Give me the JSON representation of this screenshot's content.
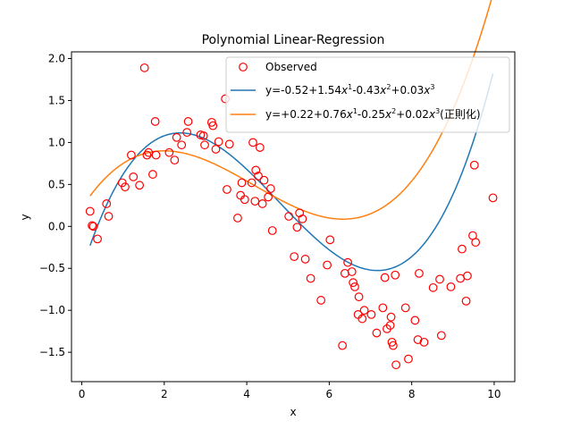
{
  "chart_data": {
    "type": "scatter",
    "title": "Polynomial Linear-Regression",
    "xlabel": "x",
    "ylabel": "y",
    "xlim": [
      -0.25,
      10.5
    ],
    "ylim": [
      -1.85,
      2.08
    ],
    "xticks": [
      0,
      2,
      4,
      6,
      8,
      10
    ],
    "yticks": [
      -1.5,
      -1.0,
      -0.5,
      0.0,
      0.5,
      1.0,
      1.5,
      2.0
    ],
    "xtick_labels": [
      "0",
      "2",
      "4",
      "6",
      "8",
      "10"
    ],
    "ytick_labels": [
      "−1.5",
      "−1.0",
      "−0.5",
      "0.0",
      "0.5",
      "1.0",
      "1.5",
      "2.0"
    ],
    "grid": false,
    "legend_position": "upper-right",
    "legend": {
      "observed": "Observed",
      "fit": {
        "intercept": "y=-0.52+1.54",
        "t1": "-0.43",
        "t2": "+0.03",
        "tail": ""
      },
      "ridge": {
        "intercept": "y=+0.22+0.76",
        "t1": "-0.25",
        "t2": "+0.02",
        "tail": "(正則化)"
      }
    },
    "scatter_series": {
      "name": "Observed",
      "color": "#ff0000",
      "x": [
        0.2,
        0.25,
        0.28,
        0.38,
        0.6,
        0.65,
        0.98,
        1.05,
        1.2,
        1.25,
        1.4,
        1.52,
        1.58,
        1.62,
        1.72,
        1.78,
        1.8,
        2.12,
        2.25,
        2.3,
        2.42,
        2.55,
        2.58,
        2.88,
        2.95,
        2.98,
        3.15,
        3.18,
        3.25,
        3.32,
        3.48,
        3.52,
        3.58,
        3.78,
        3.85,
        3.88,
        3.95,
        4.12,
        4.15,
        4.2,
        4.22,
        4.28,
        4.32,
        4.38,
        4.42,
        4.52,
        4.58,
        4.62,
        5.02,
        5.15,
        5.22,
        5.28,
        5.35,
        5.42,
        5.55,
        5.8,
        5.95,
        6.02,
        6.32,
        6.38,
        6.45,
        6.55,
        6.58,
        6.62,
        6.7,
        6.72,
        6.8,
        6.85,
        7.02,
        7.15,
        7.3,
        7.35,
        7.4,
        7.48,
        7.5,
        7.52,
        7.55,
        7.6,
        7.62,
        7.85,
        7.92,
        8.08,
        8.15,
        8.18,
        8.3,
        8.52,
        8.68,
        8.72,
        8.95,
        9.18,
        9.22,
        9.32,
        9.35,
        9.48,
        9.52,
        9.55,
        9.97
      ],
      "y": [
        0.18,
        0.01,
        0.0,
        -0.15,
        0.27,
        0.12,
        0.52,
        0.47,
        0.85,
        0.59,
        0.49,
        1.89,
        0.85,
        0.88,
        0.62,
        1.25,
        0.85,
        0.88,
        0.79,
        1.06,
        0.97,
        1.12,
        1.25,
        1.09,
        1.08,
        0.97,
        1.24,
        1.2,
        0.92,
        1.01,
        1.52,
        0.44,
        0.98,
        0.1,
        0.37,
        0.52,
        0.32,
        0.52,
        1.0,
        0.3,
        0.67,
        0.6,
        0.94,
        0.27,
        0.55,
        0.35,
        0.45,
        -0.05,
        0.12,
        -0.36,
        -0.01,
        0.16,
        0.09,
        -0.39,
        -0.62,
        -0.88,
        -0.46,
        -0.16,
        -1.42,
        -0.56,
        -0.43,
        -0.54,
        -0.67,
        -0.72,
        -1.05,
        -0.84,
        -1.1,
        -1.0,
        -1.05,
        -1.27,
        -0.97,
        -0.61,
        -1.22,
        -1.18,
        -1.08,
        -1.38,
        -1.42,
        -0.58,
        -1.65,
        -0.97,
        -1.58,
        -1.12,
        -1.35,
        -0.56,
        -1.38,
        -0.73,
        -0.63,
        -1.3,
        -0.72,
        -0.62,
        -0.27,
        -0.89,
        -0.59,
        -0.11,
        0.73,
        -0.19,
        0.34
      ]
    },
    "line_series": [
      {
        "name": "y=-0.52+1.54x^1-0.43x^2+0.03x^3",
        "color": "#1f77b4",
        "coefficients": [
          -0.52,
          1.54,
          -0.43,
          0.03
        ],
        "x_range": [
          0.2,
          9.97
        ]
      },
      {
        "name": "y=+0.22+0.76x^1-0.25x^2+0.02x^3(正則化)",
        "color": "#ff7f0e",
        "coefficients": [
          0.22,
          0.76,
          -0.25,
          0.02
        ],
        "x_range": [
          0.2,
          9.97
        ]
      }
    ]
  }
}
